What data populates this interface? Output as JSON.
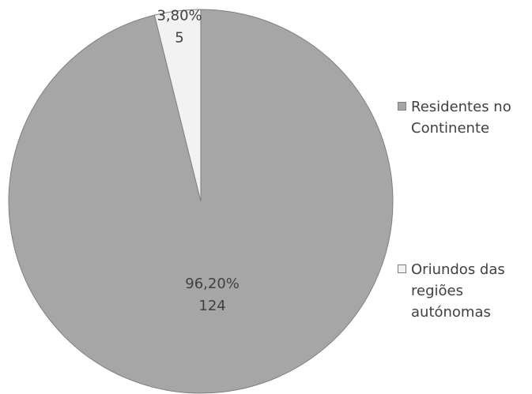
{
  "chart_data": {
    "type": "pie",
    "categories": [
      "Residentes no Continente",
      "Oriundos das regiões autónomas"
    ],
    "values": [
      124,
      5
    ],
    "percentages": [
      96.2,
      3.8
    ],
    "percentage_labels": [
      "96,20%",
      "3,80%"
    ],
    "colors": [
      "#a6a6a6",
      "#f2f2f2"
    ],
    "legend": "right"
  }
}
